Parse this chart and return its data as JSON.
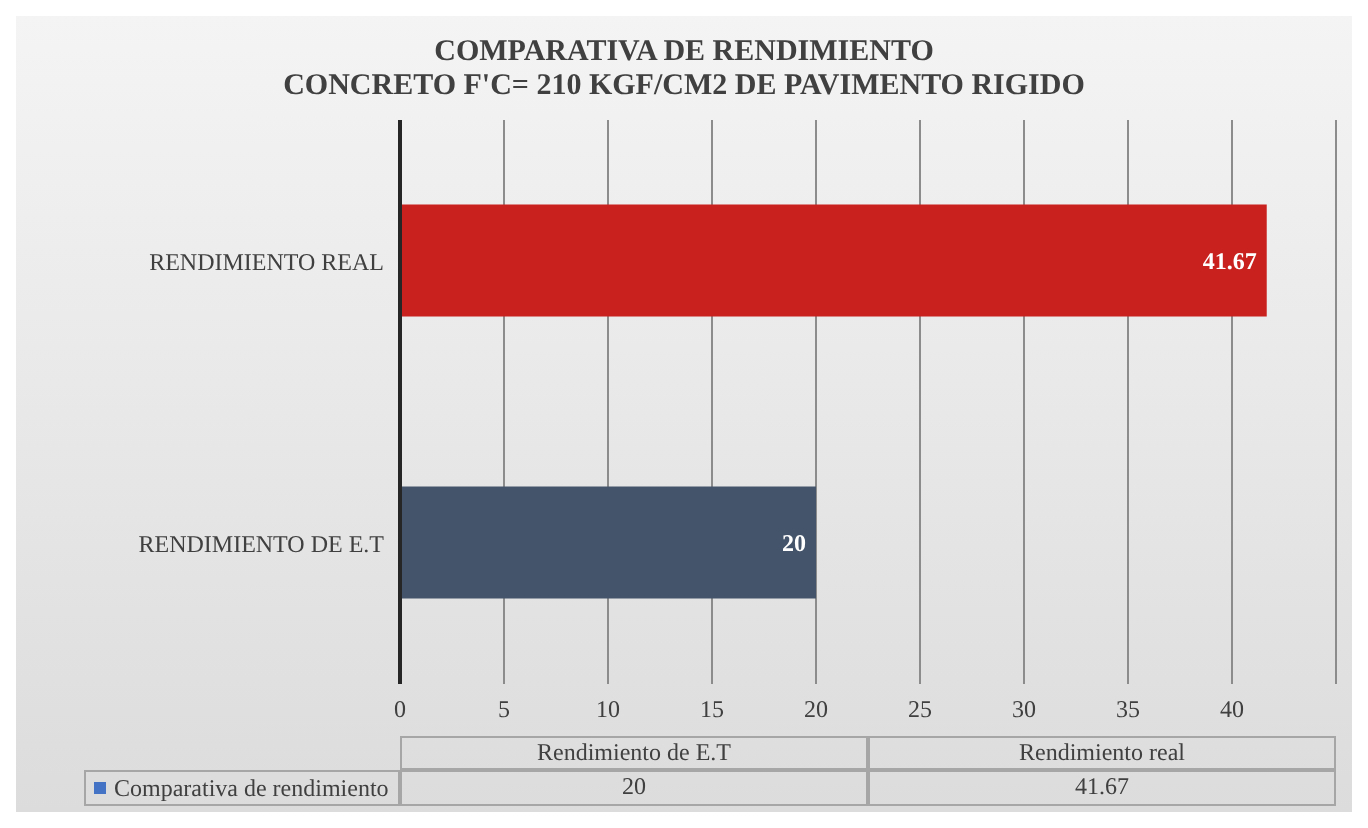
{
  "chart_data": {
    "type": "bar",
    "orientation": "horizontal",
    "title": "COMPARATIVA DE RENDIMIENTO",
    "subtitle": "CONCRETO F'C= 210 KGF/CM2 DE PAVIMENTO RIGIDO",
    "categories": [
      "RENDIMIENTO REAL",
      "RENDIMIENTO DE E.T"
    ],
    "series": [
      {
        "name": "Comparativa de rendimiento",
        "color": "#4472c4",
        "colors": [
          "#c9211e",
          "#44546a"
        ],
        "values": [
          41.67,
          20
        ],
        "value_labels": [
          "41.67",
          "20"
        ]
      }
    ],
    "xlim": [
      0,
      45
    ],
    "xticks": [
      0,
      5,
      10,
      15,
      20,
      25,
      30,
      35,
      40,
      {
        "value": 45,
        "label": null
      }
    ],
    "grid": "x",
    "legend": "bottom",
    "annotations": [
      "Rendimiento de E.T",
      "Rendimiento real"
    ]
  }
}
